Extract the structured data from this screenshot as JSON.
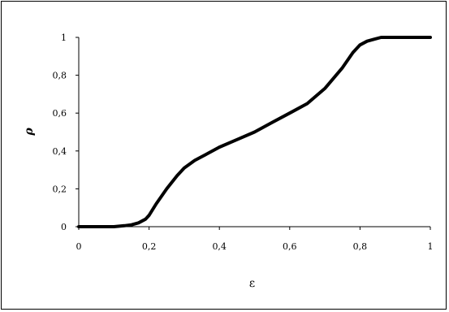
{
  "chart_data": {
    "type": "line",
    "title": "",
    "xlabel": "ε",
    "ylabel": "ρ",
    "xlim": [
      0,
      1
    ],
    "ylim": [
      0,
      1
    ],
    "grid": false,
    "xticks": [
      "0",
      "0,2",
      "0,4",
      "0,6",
      "0,8",
      "1"
    ],
    "yticks": [
      "0",
      "0,2",
      "0,4",
      "0,6",
      "0,8",
      "1"
    ],
    "series": [
      {
        "color": "#000000",
        "x": [
          0,
          0.05,
          0.1,
          0.13,
          0.15,
          0.17,
          0.19,
          0.2,
          0.22,
          0.25,
          0.28,
          0.3,
          0.33,
          0.36,
          0.4,
          0.45,
          0.5,
          0.55,
          0.6,
          0.65,
          0.7,
          0.75,
          0.78,
          0.8,
          0.82,
          0.84,
          0.86,
          0.88,
          0.9,
          0.95,
          1
        ],
        "y": [
          0,
          0,
          0,
          0.005,
          0.01,
          0.02,
          0.04,
          0.06,
          0.12,
          0.2,
          0.27,
          0.31,
          0.35,
          0.38,
          0.42,
          0.46,
          0.5,
          0.55,
          0.6,
          0.65,
          0.73,
          0.84,
          0.92,
          0.96,
          0.98,
          0.99,
          1,
          1,
          1,
          1,
          1
        ]
      }
    ]
  }
}
